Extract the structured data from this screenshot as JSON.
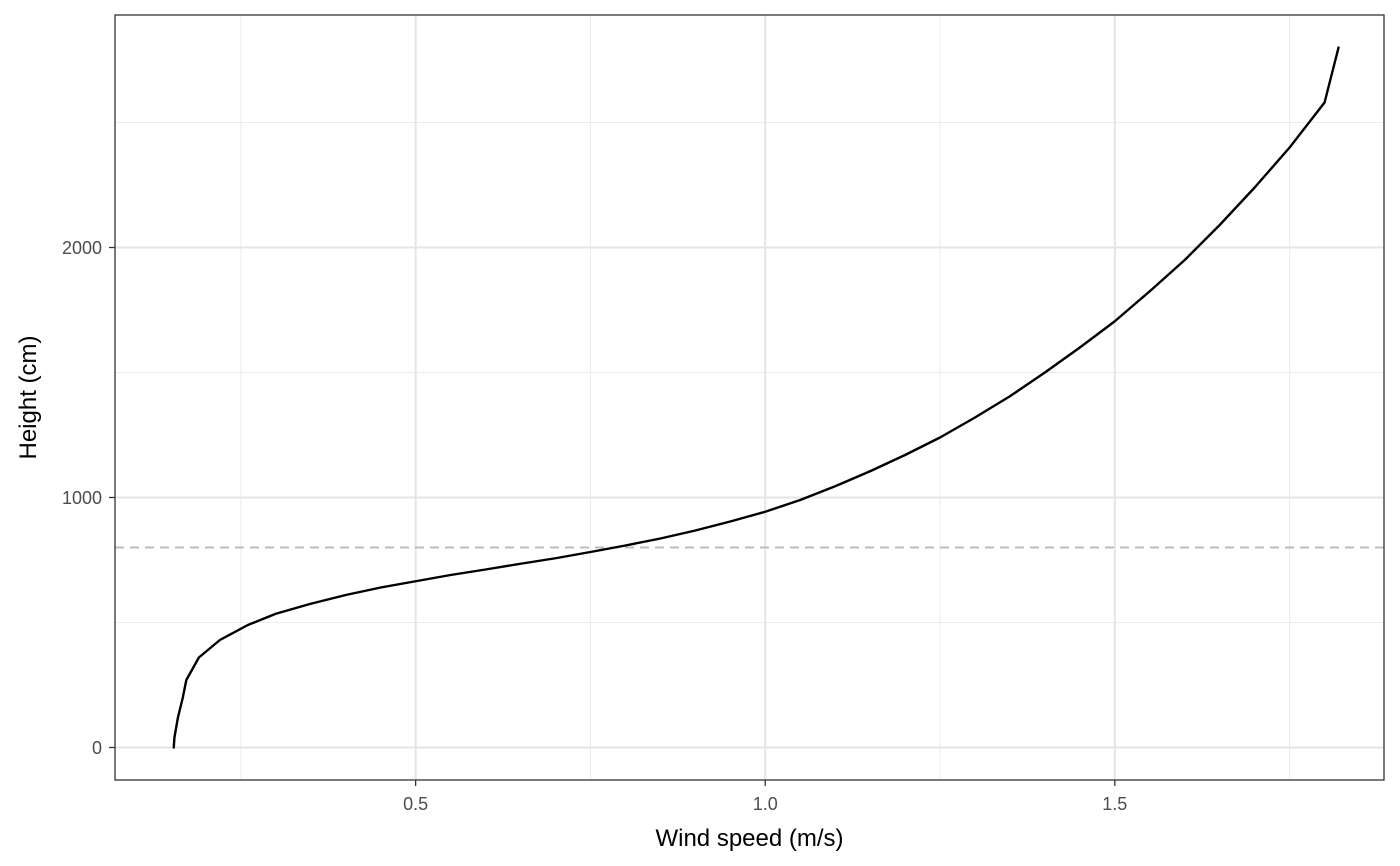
{
  "chart_data": {
    "type": "line",
    "title": "",
    "xlabel": "Wind speed (m/s)",
    "ylabel": "Height (cm)",
    "xlim": [
      0.07,
      1.885
    ],
    "ylim": [
      -130,
      2930
    ],
    "x_ticks": [
      0.5,
      1.0,
      1.5
    ],
    "x_tick_labels": [
      "0.5",
      "1.0",
      "1.5"
    ],
    "y_ticks": [
      0,
      1000,
      2000
    ],
    "y_tick_labels": [
      "0",
      "1000",
      "2000"
    ],
    "x_minor_ticks": [
      0.25,
      0.75,
      1.25,
      1.75
    ],
    "y_minor_ticks": [
      500,
      1500,
      2500
    ],
    "grid": true,
    "legend": "none",
    "reference_line": {
      "orientation": "horizontal",
      "y": 800,
      "style": "dashed",
      "color": "#bdbdbd"
    },
    "series": [
      {
        "color": "#000000",
        "x": [
          0.154,
          0.155,
          0.16,
          0.167,
          0.172,
          0.19,
          0.22,
          0.26,
          0.3,
          0.35,
          0.4,
          0.45,
          0.5,
          0.55,
          0.6,
          0.65,
          0.7,
          0.75,
          0.8,
          0.85,
          0.9,
          0.95,
          1.0,
          1.05,
          1.1,
          1.15,
          1.2,
          1.25,
          1.3,
          1.35,
          1.4,
          1.45,
          1.5,
          1.55,
          1.6,
          1.65,
          1.7,
          1.75,
          1.8,
          1.82
        ],
        "y": [
          0,
          40,
          120,
          200,
          270,
          360,
          430,
          490,
          535,
          575,
          610,
          640,
          665,
          690,
          712,
          735,
          757,
          782,
          808,
          836,
          868,
          904,
          943,
          990,
          1045,
          1105,
          1170,
          1240,
          1320,
          1405,
          1500,
          1600,
          1705,
          1825,
          1950,
          2090,
          2240,
          2400,
          2580,
          2800
        ]
      }
    ]
  }
}
